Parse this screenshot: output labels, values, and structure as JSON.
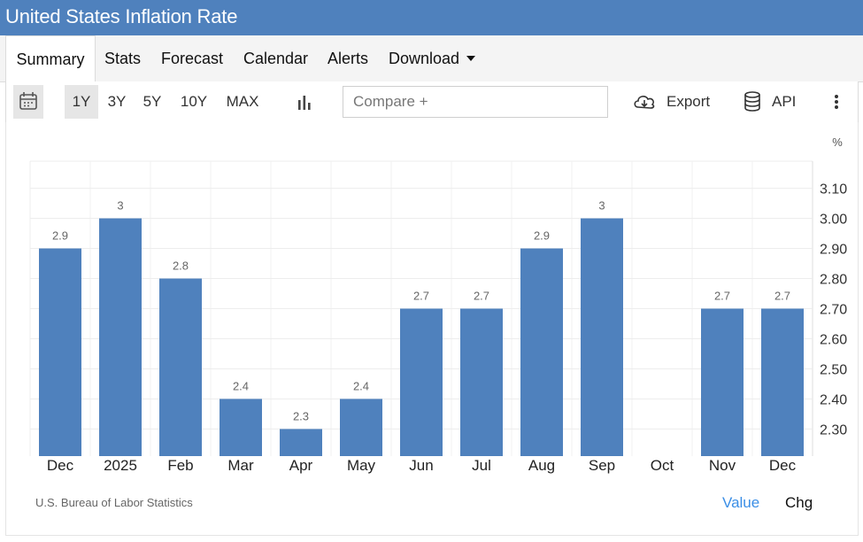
{
  "title": "United States Inflation Rate",
  "tabs": [
    {
      "label": "Summary",
      "active": true
    },
    {
      "label": "Stats"
    },
    {
      "label": "Forecast"
    },
    {
      "label": "Calendar"
    },
    {
      "label": "Alerts"
    },
    {
      "label": "Download"
    }
  ],
  "toolbar": {
    "ranges": [
      "1Y",
      "3Y",
      "5Y",
      "10Y",
      "MAX"
    ],
    "selected_range": "1Y",
    "compare_placeholder": "Compare +",
    "export_label": "Export",
    "api_label": "API"
  },
  "colors": {
    "header": "#4f81bd",
    "bar": "#4f81bd",
    "active_toggle": "#3a8ee6"
  },
  "icons": {
    "calendar": "calendar-icon",
    "chart_type": "bar-chart-icon",
    "export": "cloud-download-icon",
    "api": "database-icon",
    "more": "more-vertical-icon"
  },
  "chart_data": {
    "type": "bar",
    "unit": "%",
    "categories": [
      "Dec",
      "2025",
      "Feb",
      "Mar",
      "Apr",
      "May",
      "Jun",
      "Jul",
      "Aug",
      "Sep",
      "Oct",
      "Nov",
      "Dec"
    ],
    "values": [
      2.9,
      3.0,
      2.8,
      2.4,
      2.3,
      2.4,
      2.7,
      2.7,
      2.9,
      3.0,
      null,
      2.7,
      2.7
    ],
    "data_labels": [
      "2.9",
      "3",
      "2.8",
      "2.4",
      "2.3",
      "2.4",
      "2.7",
      "2.7",
      "2.9",
      "3",
      "",
      "2.7",
      "2.7"
    ],
    "yticks": [
      "2.30",
      "2.40",
      "2.50",
      "2.60",
      "2.70",
      "2.80",
      "2.90",
      "3.00",
      "3.10"
    ],
    "ylim": [
      2.21,
      3.19
    ],
    "y_axis_side": "right",
    "grid": true
  },
  "footer": {
    "source": "U.S. Bureau of Labor Statistics",
    "toggle_value": "Value",
    "toggle_chg": "Chg",
    "active_toggle": "Value"
  }
}
